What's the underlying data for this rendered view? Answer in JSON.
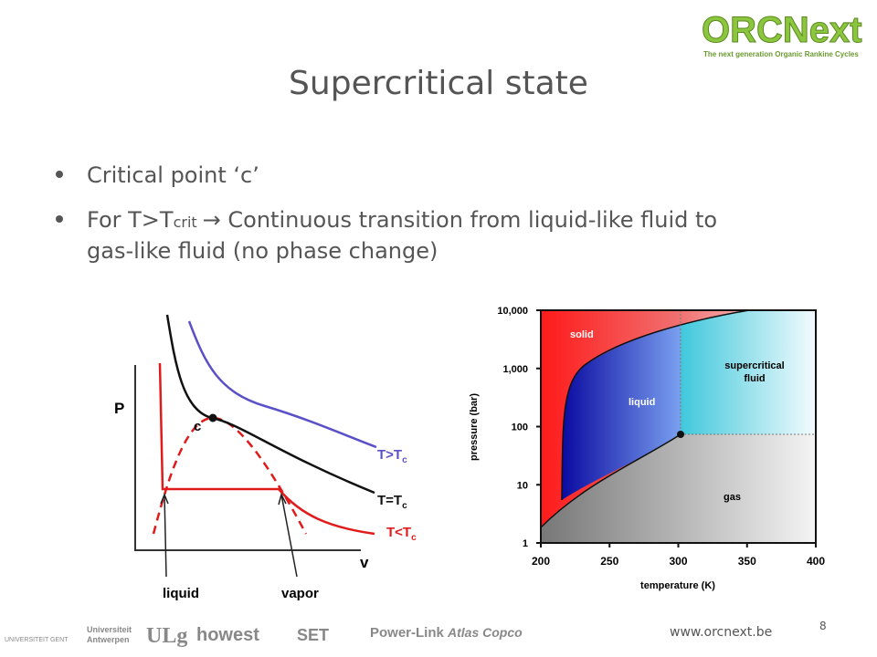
{
  "logo": {
    "name": "ORCNext",
    "tagline": "The next generation Organic Rankine Cycles"
  },
  "title": "Supercritical state",
  "bullets": [
    {
      "text": "Critical point ‘c’"
    },
    {
      "before": "For T>T",
      "sub": "crit",
      "after": "→ Continuous transition from liquid-like fluid to",
      "line2": "gas-like fluid (no phase change)"
    }
  ],
  "pv_diagram": {
    "y_label": "P",
    "x_label": "v",
    "point_label": "c",
    "curves": [
      {
        "name": "T>T",
        "sub": "c",
        "color": "#5a50c8"
      },
      {
        "name": "T=T",
        "sub": "c",
        "color": "#111111"
      },
      {
        "name": "T<T",
        "sub": "c",
        "color": "#e01b1b"
      }
    ],
    "annotations": [
      "liquid",
      "vapor"
    ]
  },
  "phase_diagram": {
    "x_label": "temperature (K)",
    "y_label": "pressure (bar)",
    "xlim": [
      200,
      400
    ],
    "xticks": [
      200,
      250,
      300,
      350,
      400
    ],
    "ylim": [
      1,
      10000
    ],
    "log_y": true,
    "yticks": [
      1,
      10,
      100,
      {
        "value": 1000,
        "label": "1,000"
      },
      {
        "value": 10000,
        "label": "10,000"
      }
    ],
    "regions": [
      "solid",
      "liquid",
      "supercritical",
      "fluid",
      "gas"
    ]
  },
  "footer": {
    "url": "www.orcnext.be",
    "page": "8",
    "partners": [
      "UNIVERSITEIT GENT",
      "Universiteit",
      "Antwerpen",
      "ULg",
      "howest",
      "SET",
      "Power-Link",
      "Atlas Copco"
    ]
  }
}
